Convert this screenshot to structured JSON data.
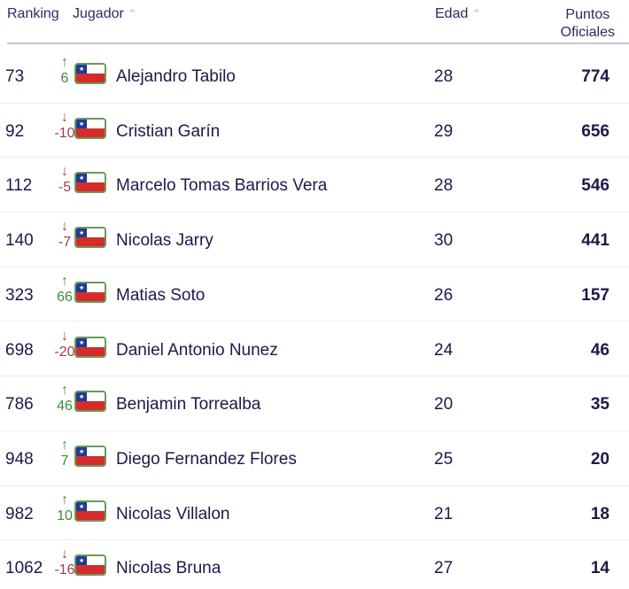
{
  "header": {
    "ranking": "Ranking",
    "player": "Jugador",
    "age": "Edad",
    "points_line1": "Puntos",
    "points_line2": "Oficiales",
    "sort_icon": "chevron-up-icon"
  },
  "colors": {
    "up": "#3d8a3a",
    "down": "#9e3f4d",
    "text": "#1b1a4a"
  },
  "rows": [
    {
      "rank": "73",
      "dir": "up",
      "move": "6",
      "name": "Alejandro Tabilo",
      "age": "28",
      "points": "774"
    },
    {
      "rank": "92",
      "dir": "down",
      "move": "-10",
      "name": "Cristian Garín",
      "age": "29",
      "points": "656"
    },
    {
      "rank": "112",
      "dir": "down",
      "move": "-5",
      "name": "Marcelo Tomas Barrios Vera",
      "age": "28",
      "points": "546"
    },
    {
      "rank": "140",
      "dir": "down",
      "move": "-7",
      "name": "Nicolas Jarry",
      "age": "30",
      "points": "441"
    },
    {
      "rank": "323",
      "dir": "up",
      "move": "66",
      "name": "Matias Soto",
      "age": "26",
      "points": "157"
    },
    {
      "rank": "698",
      "dir": "down",
      "move": "-20",
      "name": "Daniel Antonio Nunez",
      "age": "24",
      "points": "46"
    },
    {
      "rank": "786",
      "dir": "up",
      "move": "46",
      "name": "Benjamin Torrealba",
      "age": "20",
      "points": "35"
    },
    {
      "rank": "948",
      "dir": "up",
      "move": "7",
      "name": "Diego Fernandez Flores",
      "age": "25",
      "points": "20"
    },
    {
      "rank": "982",
      "dir": "up",
      "move": "10",
      "name": "Nicolas Villalon",
      "age": "21",
      "points": "18"
    },
    {
      "rank": "1062",
      "dir": "down",
      "move": "-16",
      "name": "Nicolas Bruna",
      "age": "27",
      "points": "14"
    }
  ]
}
